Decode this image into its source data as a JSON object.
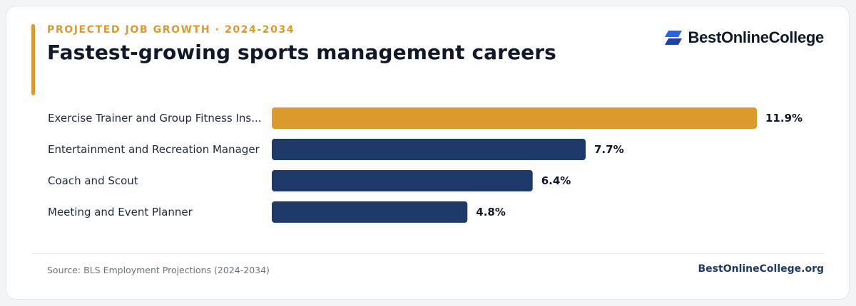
{
  "header": {
    "eyebrow": "PROJECTED JOB GROWTH · 2024-2034",
    "title": "Fastest-growing sports management careers"
  },
  "brand": {
    "name": "BestOnlineCollege",
    "icon": "brand-logo-icon"
  },
  "footer": {
    "source": "Source: BLS Employment Projections (2024-2034)",
    "site": "BestOnlineCollege.org"
  },
  "colors": {
    "accent": "#db9a2a",
    "navy": "#1d3a6b",
    "brand_blue": "#2563eb"
  },
  "chart_data": {
    "type": "bar",
    "orientation": "horizontal",
    "categories": [
      "Exercise Trainer and Group Fitness Ins...",
      "Entertainment and Recreation Manager",
      "Coach and Scout",
      "Meeting and Event Planner"
    ],
    "values": [
      11.9,
      7.7,
      6.4,
      4.8
    ],
    "value_labels": [
      "11.9%",
      "7.7%",
      "6.4%",
      "4.8%"
    ],
    "highlight_index": 0,
    "xlim": [
      0,
      11.9
    ],
    "grid": false,
    "legend": "none"
  }
}
